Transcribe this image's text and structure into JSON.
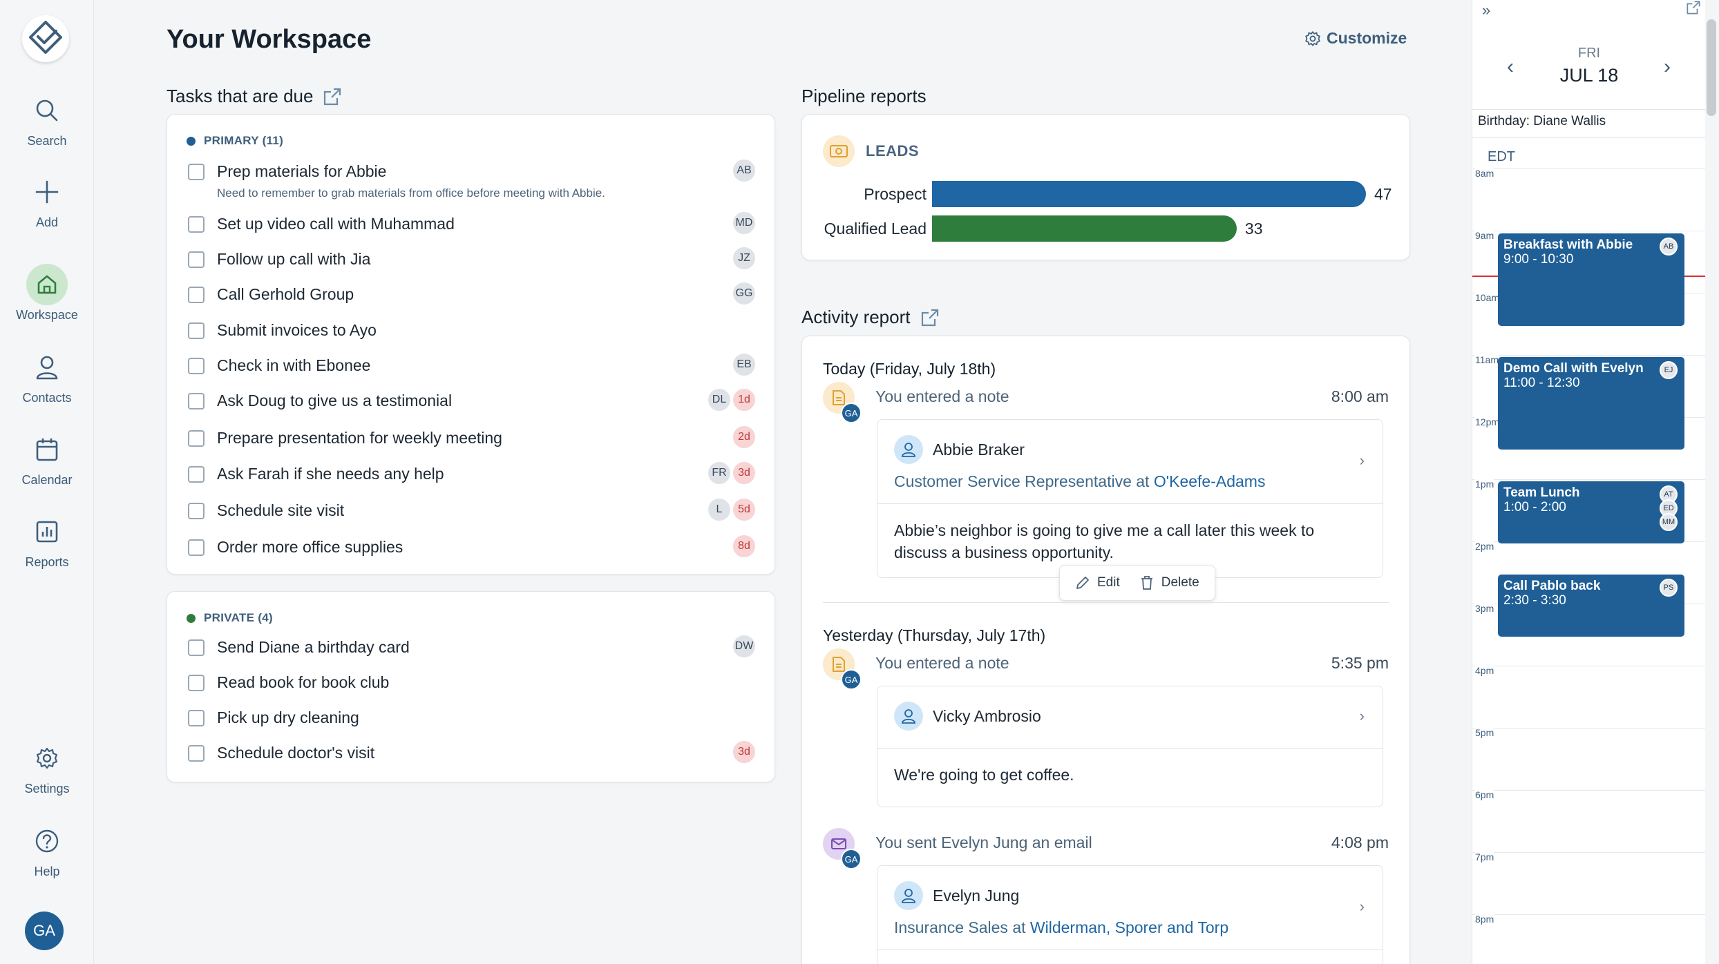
{
  "nav": {
    "search": "Search",
    "add": "Add",
    "workspace": "Workspace",
    "contacts": "Contacts",
    "calendar": "Calendar",
    "reports": "Reports",
    "settings": "Settings",
    "help": "Help",
    "user_initials": "GA"
  },
  "header": {
    "title": "Your Workspace",
    "customize": "Customize"
  },
  "tasks": {
    "title": "Tasks that are due",
    "primary": {
      "label": "PRIMARY (11)",
      "color": "#1f5f96",
      "items": [
        {
          "title": "Prep materials for Abbie",
          "sub": "Need to remember to grab materials from office before meeting with Abbie.",
          "badges": [
            "AB"
          ],
          "due": ""
        },
        {
          "title": "Set up video call with Muhammad",
          "badges": [
            "MD"
          ],
          "due": ""
        },
        {
          "title": "Follow up call with Jia",
          "badges": [
            "JZ"
          ],
          "due": ""
        },
        {
          "title": "Call Gerhold Group",
          "badges": [
            "GG"
          ],
          "due": ""
        },
        {
          "title": "Submit invoices to Ayo",
          "badges": [],
          "due": ""
        },
        {
          "title": "Check in with Ebonee",
          "badges": [
            "EB"
          ],
          "due": ""
        },
        {
          "title": "Ask Doug to give us a testimonial",
          "badges": [
            "DL"
          ],
          "due": "1d"
        },
        {
          "title": "Prepare presentation for weekly meeting",
          "badges": [],
          "due": "2d"
        },
        {
          "title": "Ask Farah if she needs any help",
          "badges": [
            "FR"
          ],
          "due": "3d"
        },
        {
          "title": "Schedule site visit",
          "badges": [
            "L"
          ],
          "due": "5d"
        },
        {
          "title": "Order more office supplies",
          "badges": [],
          "due": "8d"
        }
      ]
    },
    "private": {
      "label": "PRIVATE (4)",
      "color": "#2e7d3c",
      "items": [
        {
          "title": "Send Diane a birthday card",
          "badges": [
            "DW"
          ],
          "due": ""
        },
        {
          "title": "Read book for book club",
          "badges": [],
          "due": ""
        },
        {
          "title": "Pick up dry cleaning",
          "badges": [],
          "due": ""
        },
        {
          "title": "Schedule doctor's visit",
          "badges": [],
          "due": "3d"
        }
      ]
    }
  },
  "pipeline": {
    "title": "Pipeline reports",
    "card_label": "LEADS",
    "chart_data": {
      "type": "bar",
      "categories": [
        "Prospect",
        "Qualified Lead"
      ],
      "values": [
        47,
        33
      ],
      "colors": [
        "#1f66a4",
        "#2e7d3c"
      ]
    }
  },
  "activity": {
    "title": "Activity report",
    "today": {
      "heading": "Today (Friday, July 18th)",
      "text": "You entered a note",
      "time": "8:00 am",
      "contact": "Abbie Braker",
      "role": "Customer Service Representative at ",
      "company": "O'Keefe-Adams",
      "note": "Abbie’s neighbor is going to give me a call later this week to discuss a business opportunity.",
      "edit": "Edit",
      "delete": "Delete"
    },
    "yesterday": {
      "heading": "Yesterday (Thursday, July 17th)",
      "text": "You entered a note",
      "time": "5:35 pm",
      "contact": "Vicky Ambrosio",
      "note": "We're going to get coffee."
    },
    "email": {
      "text": "You sent Evelyn Jung an email",
      "time": "4:08 pm",
      "contact": "Evelyn Jung",
      "role": "Insurance Sales at ",
      "company": "Wilderman, Sporer and Torp"
    },
    "avatar": "GA"
  },
  "calendar": {
    "weekday": "FRI",
    "date": "JUL 18",
    "birthday": "Birthday: Diane Wallis",
    "timezone": "EDT",
    "hours": [
      "8am",
      "9am",
      "10am",
      "11am",
      "12pm",
      "1pm",
      "2pm",
      "3pm",
      "4pm",
      "5pm",
      "6pm",
      "7pm",
      "8pm"
    ],
    "events": [
      {
        "title": "Breakfast with Abbie",
        "time": "9:00 - 10:30",
        "avatars": [
          "AB"
        ]
      },
      {
        "title": "Demo Call with Evelyn",
        "time": "11:00 - 12:30",
        "avatars": [
          "EJ"
        ]
      },
      {
        "title": "Team Lunch",
        "time": "1:00 - 2:00",
        "avatars": [
          "AT",
          "ED",
          "MM"
        ]
      },
      {
        "title": "Call Pablo back",
        "time": "2:30 - 3:30",
        "avatars": [
          "PS"
        ]
      }
    ]
  }
}
